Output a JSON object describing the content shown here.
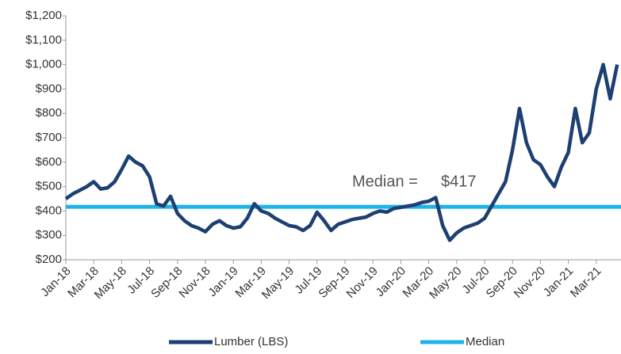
{
  "chart_data": {
    "type": "line",
    "categories": [
      "Jan-18",
      null,
      null,
      null,
      "Mar-18",
      null,
      null,
      null,
      "May-18",
      null,
      null,
      null,
      "Jul-18",
      null,
      null,
      null,
      "Sep-18",
      null,
      null,
      null,
      "Nov-18",
      null,
      null,
      null,
      "Jan-19",
      null,
      null,
      null,
      "Mar-19",
      null,
      null,
      null,
      "May-19",
      null,
      null,
      null,
      "Jul-19",
      null,
      null,
      null,
      "Sep-19",
      null,
      null,
      null,
      "Nov-19",
      null,
      null,
      null,
      "Jan-20",
      null,
      null,
      null,
      "Mar-20",
      null,
      null,
      null,
      "May-20",
      null,
      null,
      null,
      "Jul-20",
      null,
      null,
      null,
      "Sep-20",
      null,
      null,
      null,
      "Nov-20",
      null,
      null,
      null,
      "Jan-21",
      null,
      null,
      null,
      "Mar-21",
      null,
      null,
      null
    ],
    "series": [
      {
        "name": "Lumber (LBS)",
        "color": "#1d3f73",
        "values": [
          450,
          470,
          485,
          500,
          520,
          490,
          495,
          520,
          570,
          625,
          600,
          585,
          540,
          430,
          420,
          460,
          390,
          360,
          340,
          330,
          315,
          345,
          360,
          340,
          330,
          335,
          370,
          430,
          400,
          390,
          370,
          355,
          340,
          335,
          320,
          340,
          395,
          360,
          320,
          345,
          355,
          365,
          370,
          375,
          390,
          400,
          395,
          410,
          415,
          420,
          425,
          435,
          440,
          455,
          340,
          280,
          310,
          330,
          340,
          350,
          370,
          420,
          470,
          520,
          650,
          820,
          680,
          610,
          590,
          540,
          500,
          580,
          640,
          820,
          680,
          720,
          900,
          1000,
          860,
          1000
        ]
      },
      {
        "name": "Median",
        "color": "#1fb4e8",
        "value": 417,
        "value_label": "$417"
      }
    ],
    "annotation": "Median =",
    "ylim": [
      200,
      1200
    ],
    "yticks": [
      {
        "value": 200,
        "label": "$200"
      },
      {
        "value": 300,
        "label": "$300"
      },
      {
        "value": 400,
        "label": "$400"
      },
      {
        "value": 500,
        "label": "$500"
      },
      {
        "value": 600,
        "label": "$600"
      },
      {
        "value": 700,
        "label": "$700"
      },
      {
        "value": 800,
        "label": "$800"
      },
      {
        "value": 900,
        "label": "$900"
      },
      {
        "value": 1000,
        "label": "$1,000"
      },
      {
        "value": 1100,
        "label": "$1,100"
      },
      {
        "value": 1200,
        "label": "$1,200"
      }
    ],
    "grid": false,
    "legend": "bottom"
  }
}
